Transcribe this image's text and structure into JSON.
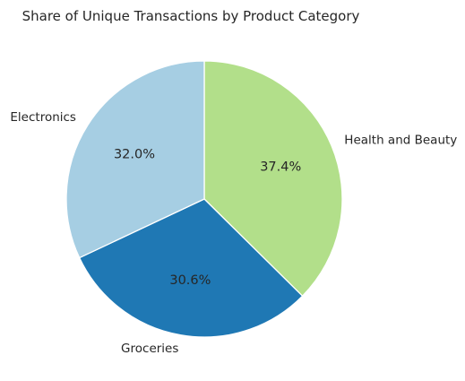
{
  "chart_data": {
    "type": "pie",
    "title": "Share of Unique Transactions by Product Category",
    "slices": [
      {
        "label": "Health and Beauty",
        "value": 37.4,
        "pct_label": "37.4%",
        "color": "#b2df8a"
      },
      {
        "label": "Groceries",
        "value": 30.6,
        "pct_label": "30.6%",
        "color": "#1f78b4"
      },
      {
        "label": "Electronics",
        "value": 32.0,
        "pct_label": "32.0%",
        "color": "#a6cee3"
      }
    ],
    "start_angle_deg": 90,
    "direction": "clockwise"
  }
}
